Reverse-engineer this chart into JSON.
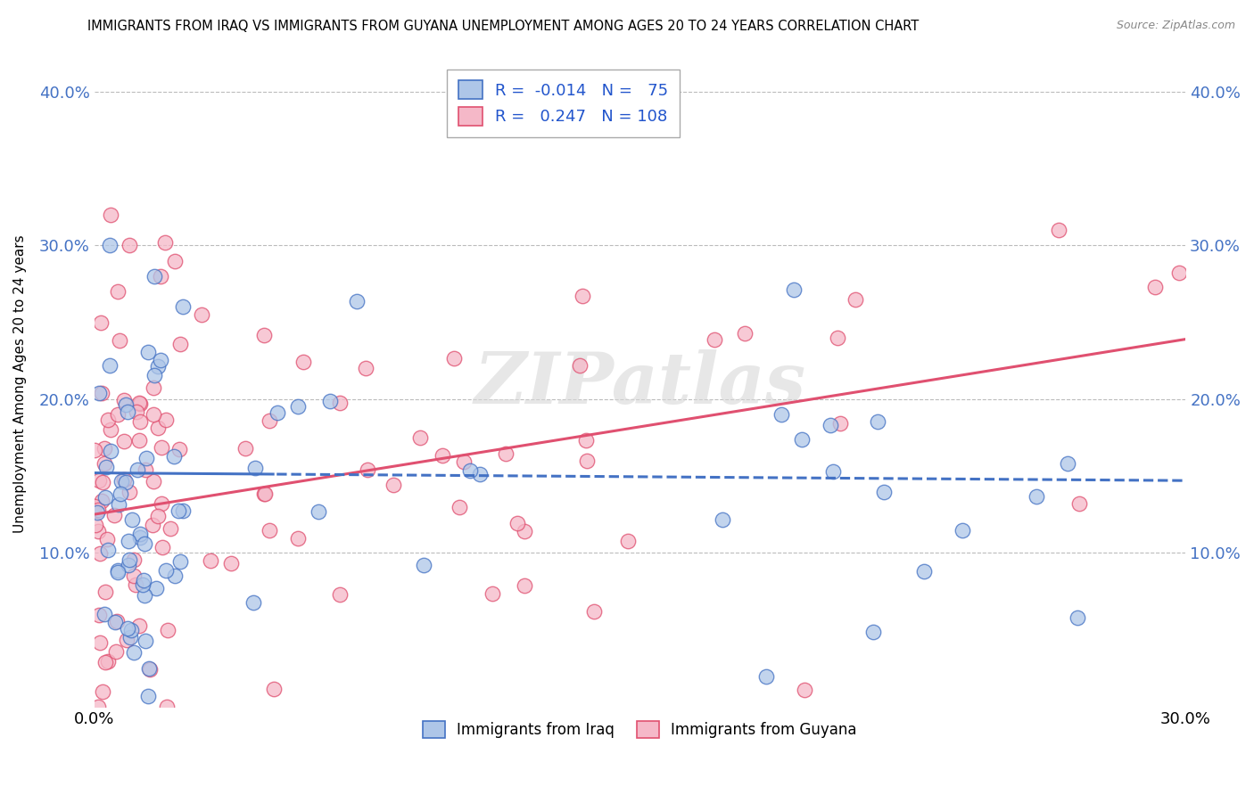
{
  "title": "IMMIGRANTS FROM IRAQ VS IMMIGRANTS FROM GUYANA UNEMPLOYMENT AMONG AGES 20 TO 24 YEARS CORRELATION CHART",
  "source": "Source: ZipAtlas.com",
  "ylabel": "Unemployment Among Ages 20 to 24 years",
  "y_ticks": [
    "10.0%",
    "20.0%",
    "30.0%",
    "40.0%"
  ],
  "y_tick_vals": [
    0.1,
    0.2,
    0.3,
    0.4
  ],
  "x_lim": [
    0.0,
    0.3
  ],
  "y_lim": [
    0.0,
    0.42
  ],
  "legend_iraq_R": "-0.014",
  "legend_iraq_N": "75",
  "legend_guyana_R": "0.247",
  "legend_guyana_N": "108",
  "iraq_color": "#aec6e8",
  "guyana_color": "#f5b8c8",
  "iraq_line_color": "#4472c4",
  "guyana_line_color": "#e05070",
  "watermark": "ZIPatlas",
  "background_color": "#ffffff",
  "grid_color": "#bbbbbb"
}
